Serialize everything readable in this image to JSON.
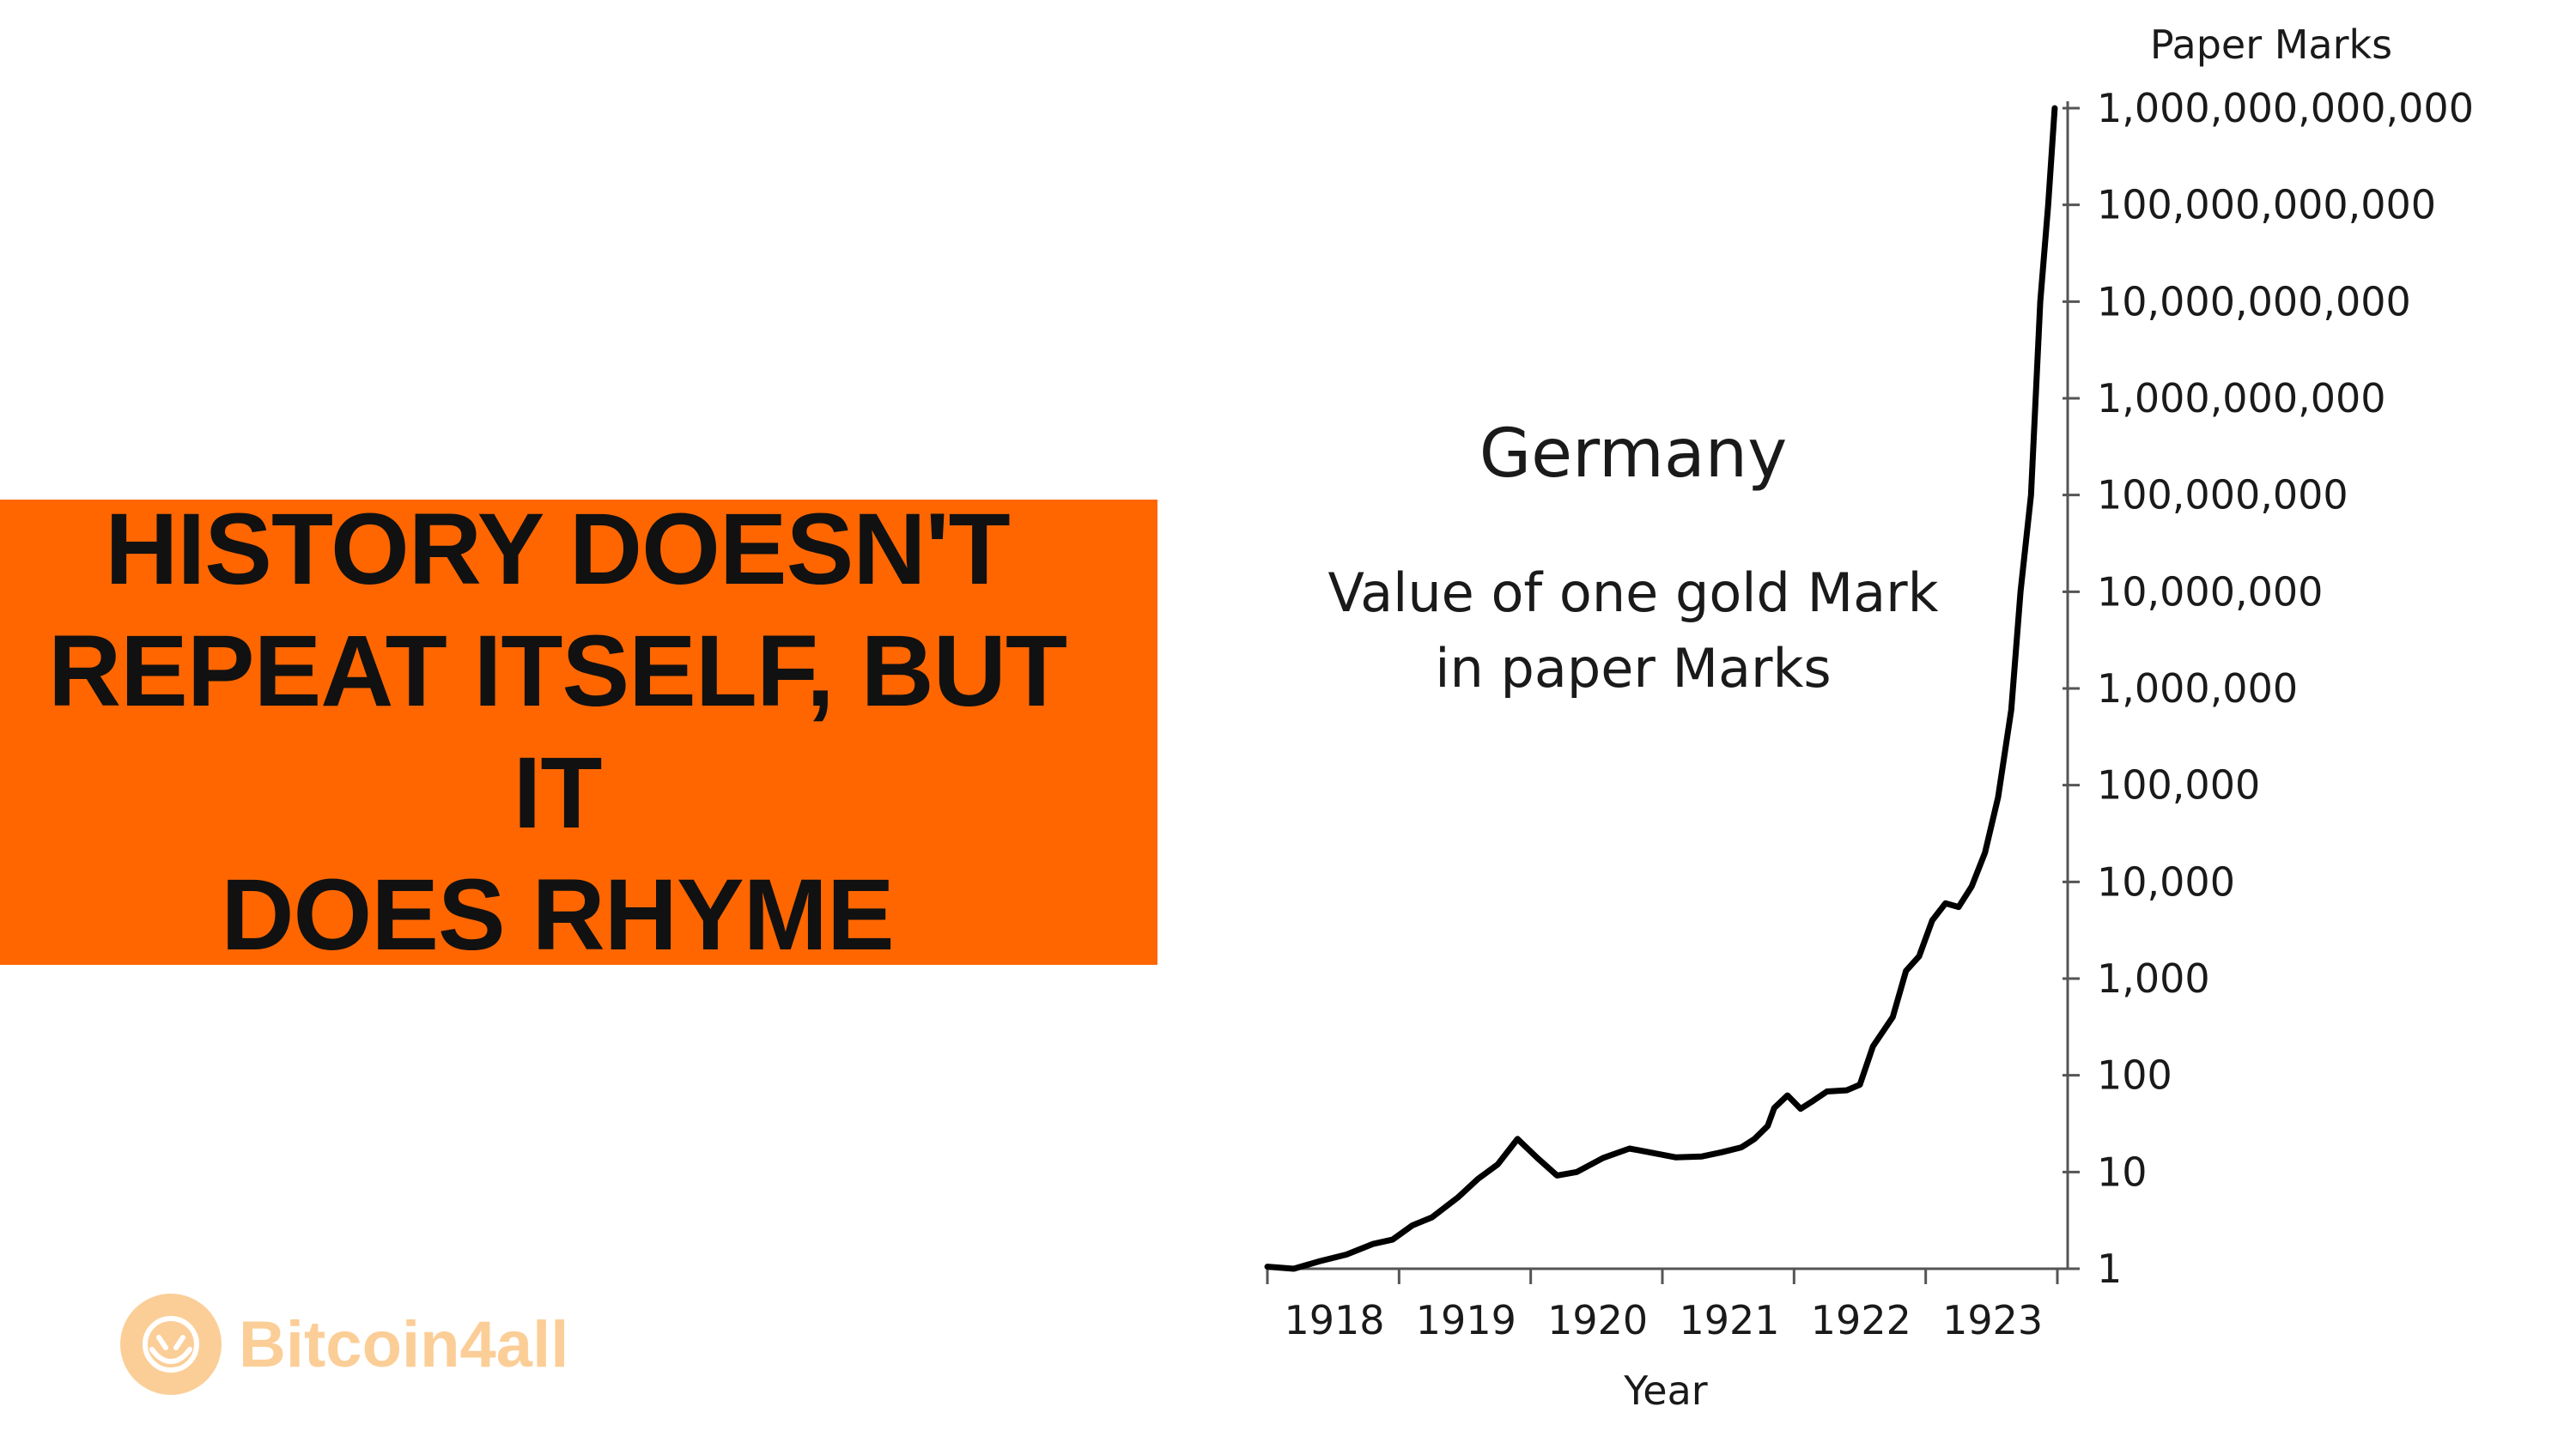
{
  "banner": {
    "lines": [
      "HISTORY DOESN'T",
      "REPEAT ITSELF, BUT IT",
      "DOES RHYME"
    ]
  },
  "logo": {
    "text": "Bitcoin4all",
    "color": "#f7931a",
    "icon": "hands-coin-icon"
  },
  "colors": {
    "banner": "#ff6600",
    "line": "#000000"
  },
  "chart_data": {
    "type": "line",
    "title": "Germany",
    "subtitle_lines": [
      "Value of one gold Mark",
      "in paper Marks"
    ],
    "xlabel": "Year",
    "ylabel": "Paper Marks",
    "yscale": "log",
    "ylim": [
      1,
      1000000000000
    ],
    "xlim": [
      1918.0,
      1924.0
    ],
    "x_ticks": [
      1918,
      1919,
      1920,
      1921,
      1922,
      1923
    ],
    "x_tick_labels": [
      "1918",
      "1919",
      "1920",
      "1921",
      "1922",
      "1923"
    ],
    "y_ticks": [
      1,
      10,
      100,
      1000,
      10000,
      100000,
      1000000,
      10000000,
      100000000,
      1000000000,
      10000000000,
      100000000000,
      1000000000000
    ],
    "y_tick_labels": [
      "1",
      "10",
      "100",
      "1,000",
      "10,000",
      "100,000",
      "1,000,000",
      "10,000,000",
      "100,000,000",
      "1,000,000,000",
      "10,000,000,000",
      "100,000,000,000",
      "1,000,000,000,000"
    ],
    "grid": false,
    "series": [
      {
        "x": [
          1918.0,
          1918.2,
          1918.4,
          1918.6,
          1918.8,
          1918.95,
          1919.1,
          1919.25,
          1919.45,
          1919.6,
          1919.75,
          1919.9,
          1920.05,
          1920.2,
          1920.35,
          1920.55,
          1920.75,
          1920.9,
          1921.1,
          1921.3,
          1921.45,
          1921.6,
          1921.7,
          1921.8,
          1921.85,
          1921.95,
          1922.05,
          1922.15,
          1922.25,
          1922.4,
          1922.5,
          1922.6,
          1922.75,
          1922.85,
          1922.95,
          1923.05,
          1923.15,
          1923.25,
          1923.35,
          1923.45,
          1923.55,
          1923.65,
          1923.72,
          1923.8,
          1923.87,
          1923.93,
          1923.98
        ],
        "y": [
          1.05,
          1.0,
          1.2,
          1.4,
          1.8,
          2.0,
          2.8,
          3.4,
          5.5,
          8.5,
          12.0,
          22.0,
          14.0,
          9.2,
          10.0,
          14.0,
          17.5,
          16.0,
          14.2,
          14.5,
          16.0,
          18.0,
          22.0,
          30.0,
          46.0,
          62.0,
          45.0,
          55.0,
          68.0,
          70.0,
          80.0,
          200.0,
          400.0,
          1200.0,
          1700.0,
          4000.0,
          6000.0,
          5500.0,
          9000.0,
          20000.0,
          75000.0,
          600000.0,
          10000000.0,
          100000000.0,
          10000000000.0,
          100000000000.0,
          1000000000000.0
        ]
      }
    ]
  }
}
